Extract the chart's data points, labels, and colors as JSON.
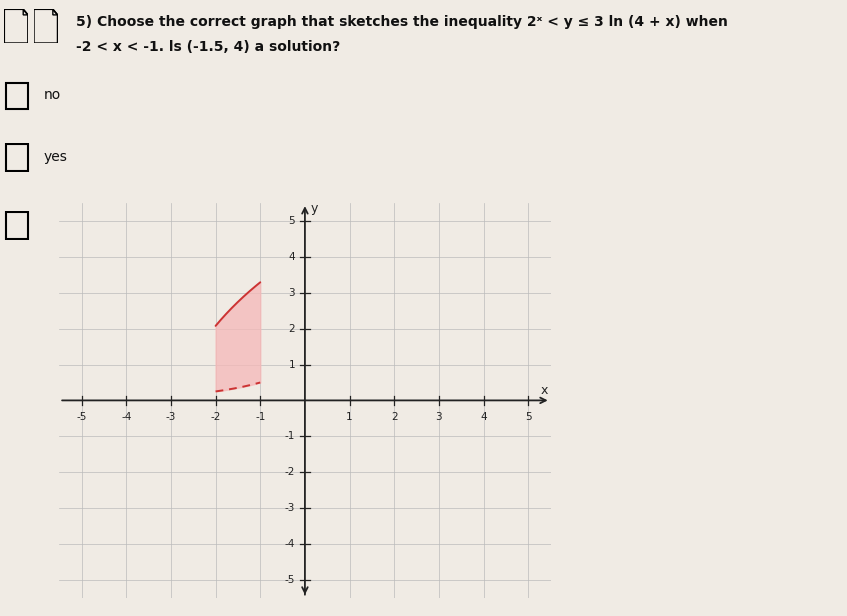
{
  "question_line1": "5) Choose the correct graph that sketches the inequality 2ˣ < y ≤ 3 ln (4 + x) when",
  "question_line2": "-2 < x < -1. ls (-1.5, 4) a solution?",
  "option_no": "no",
  "option_yes": "yes",
  "xlim": [
    -5.5,
    5.5
  ],
  "ylim": [
    -5.5,
    5.5
  ],
  "xticks": [
    -5,
    -4,
    -3,
    -2,
    -1,
    1,
    2,
    3,
    4,
    5
  ],
  "yticks": [
    -5,
    -4,
    -3,
    -2,
    -1,
    1,
    2,
    3,
    4,
    5
  ],
  "x_fill_start": -2.0,
  "x_fill_end": -1.0,
  "fill_color": "#f5b8b8",
  "fill_alpha": 0.75,
  "boundary_color": "#cc3333",
  "boundary_linewidth": 1.4,
  "grid_color": "#bbbbbb",
  "grid_linewidth": 0.5,
  "bg_color": "#f0ebe4",
  "axes_color": "#222222",
  "text_color": "#111111",
  "font_size_question": 10,
  "font_size_option": 10,
  "font_size_tick": 7.5
}
